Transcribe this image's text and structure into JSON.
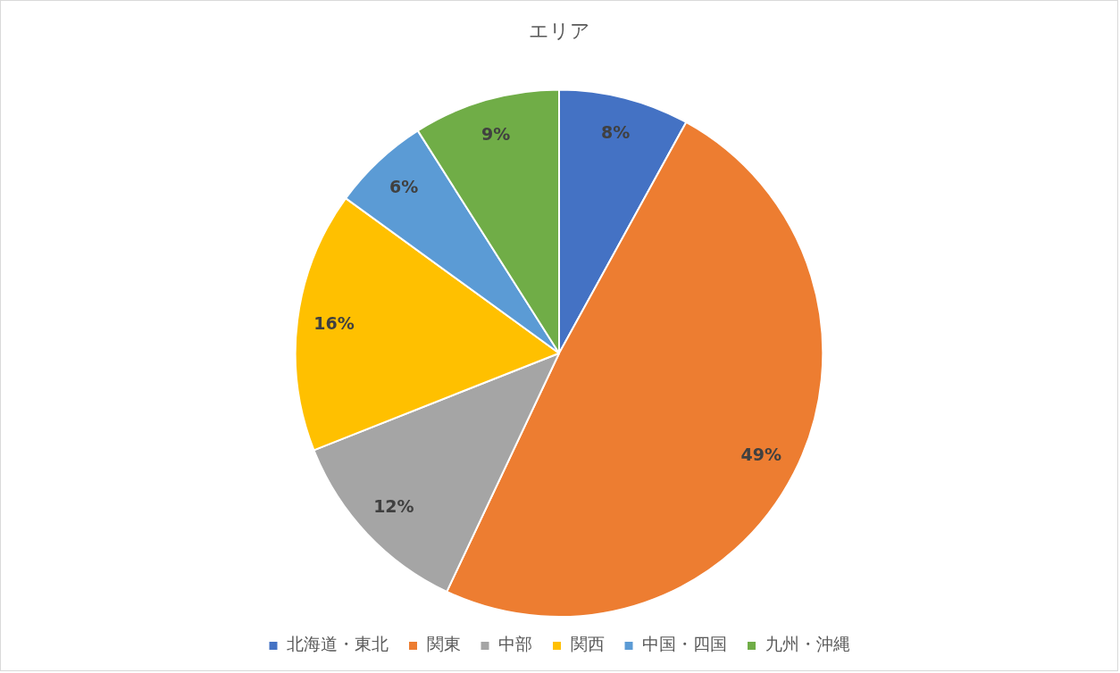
{
  "chart_data": {
    "type": "pie",
    "title": "エリア",
    "categories": [
      "北海道・東北",
      "関東",
      "中部",
      "関西",
      "中国・四国",
      "九州・沖縄"
    ],
    "values": [
      8,
      49,
      12,
      16,
      6,
      9
    ],
    "value_labels": [
      "8%",
      "49%",
      "12%",
      "16%",
      "6%",
      "9%"
    ],
    "colors": [
      "#4472c4",
      "#ed7d31",
      "#a5a5a5",
      "#ffc000",
      "#5b9bd5",
      "#70ad47"
    ],
    "legend": "bottom"
  }
}
